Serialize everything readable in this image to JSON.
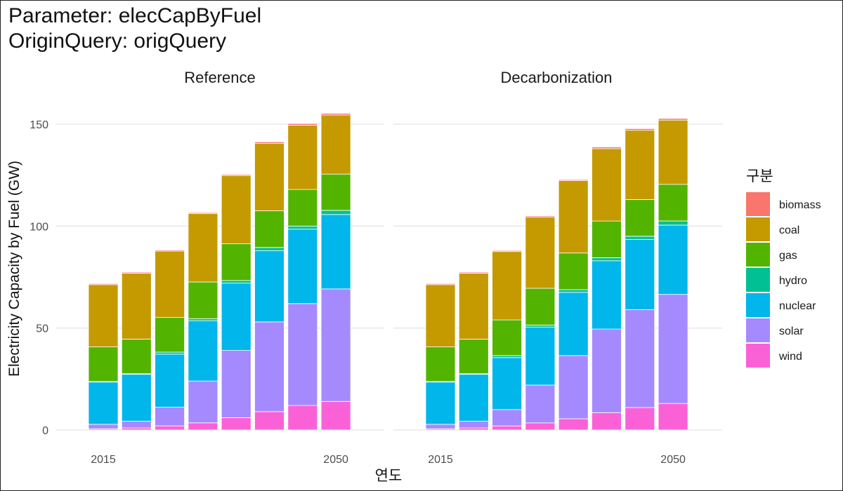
{
  "title_line1": "Parameter: elecCapByFuel",
  "title_line2": "OriginQuery: origQuery",
  "chart_data": {
    "type": "bar",
    "stacked": true,
    "facets": [
      "Reference",
      "Decarbonization"
    ],
    "x_tick_labels": [
      "2015",
      "2050"
    ],
    "x": [
      2015,
      2020,
      2025,
      2030,
      2035,
      2040,
      2045,
      2050
    ],
    "xlabel": "연도",
    "ylabel": "Electricity Capacity by Fuel (GW)",
    "ylim": [
      0,
      160
    ],
    "y_ticks": [
      0,
      50,
      100,
      150
    ],
    "grid": true,
    "legend_title": "구분",
    "legend_position": "right",
    "fuels": [
      "biomass",
      "coal",
      "gas",
      "hydro",
      "nuclear",
      "solar",
      "wind"
    ],
    "colors": {
      "biomass": "#F8766D",
      "coal": "#C49A00",
      "gas": "#53B400",
      "hydro": "#00C094",
      "nuclear": "#00B6EB",
      "solar": "#A58AFF",
      "wind": "#FB61D7"
    },
    "panels": [
      {
        "name": "Reference",
        "series": {
          "wind": [
            0.6,
            1.0,
            2.0,
            3.5,
            6.0,
            9.0,
            12.0,
            14.0
          ],
          "solar": [
            2.2,
            3.3,
            9.2,
            20.5,
            33.0,
            44.0,
            50.0,
            55.2
          ],
          "nuclear": [
            20.7,
            23.0,
            26.0,
            29.6,
            33.0,
            35.0,
            36.5,
            36.5
          ],
          "hydro": [
            0.3,
            0.3,
            1.0,
            1.0,
            1.3,
            1.5,
            1.5,
            2.0
          ],
          "gas": [
            17.0,
            17.0,
            17.0,
            18.0,
            18.0,
            18.0,
            18.0,
            17.8
          ],
          "coal": [
            30.5,
            32.3,
            32.5,
            33.5,
            33.5,
            33.0,
            31.5,
            29.0
          ],
          "biomass": [
            0.5,
            0.5,
            0.5,
            0.5,
            0.5,
            0.8,
            0.8,
            0.8
          ]
        }
      },
      {
        "name": "Decarbonization",
        "series": {
          "wind": [
            0.6,
            1.0,
            2.0,
            3.5,
            5.5,
            8.5,
            11.0,
            13.0
          ],
          "solar": [
            2.2,
            3.3,
            8.0,
            18.5,
            31.0,
            41.0,
            48.0,
            53.5
          ],
          "nuclear": [
            20.7,
            23.0,
            25.5,
            28.5,
            31.0,
            33.5,
            34.5,
            34.0
          ],
          "hydro": [
            0.3,
            0.3,
            1.0,
            1.0,
            1.3,
            1.5,
            1.5,
            2.0
          ],
          "gas": [
            17.0,
            17.0,
            17.5,
            18.0,
            18.0,
            18.0,
            18.0,
            18.0
          ],
          "coal": [
            30.5,
            32.3,
            33.5,
            35.0,
            35.5,
            35.5,
            34.0,
            31.5
          ],
          "biomass": [
            0.5,
            0.5,
            0.5,
            0.5,
            0.5,
            0.8,
            0.8,
            0.8
          ]
        }
      }
    ]
  }
}
